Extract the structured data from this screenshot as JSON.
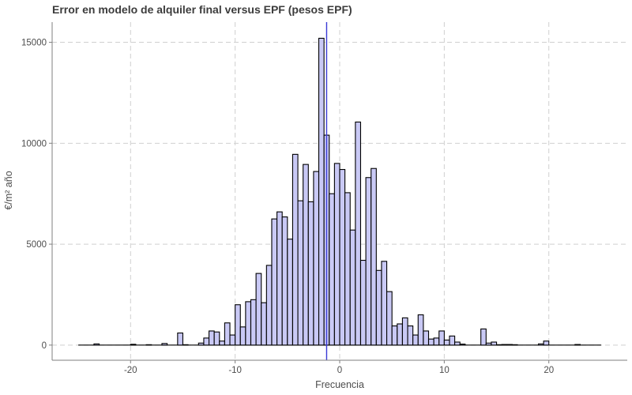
{
  "chart_data": {
    "type": "bar",
    "title": "Error en modelo de alquiler final versus EPF (pesos EPF)",
    "xlabel": "Frecuencia",
    "ylabel": "€/m² año",
    "xlim": [
      -27.5,
      27.5
    ],
    "ylim": [
      -750,
      16000
    ],
    "x_ticks": [
      -20,
      -10,
      0,
      10,
      20
    ],
    "y_ticks": [
      0,
      5000,
      10000,
      15000
    ],
    "grid": true,
    "bin_width": 0.5,
    "vline_x": -1.25,
    "colors": {
      "fill": "#c9c9f5",
      "stroke": "#000000",
      "vline": "#3a3ad6",
      "grid": "#d0d0d0",
      "axis": "#7f7f7f"
    },
    "x": [
      -24.75,
      -24.25,
      -23.75,
      -23.25,
      -22.75,
      -22.25,
      -21.75,
      -21.25,
      -20.75,
      -20.25,
      -19.75,
      -19.25,
      -18.75,
      -18.25,
      -17.75,
      -17.25,
      -16.75,
      -16.25,
      -15.75,
      -15.25,
      -14.75,
      -14.25,
      -13.75,
      -13.25,
      -12.75,
      -12.25,
      -11.75,
      -11.25,
      -10.75,
      -10.25,
      -9.75,
      -9.25,
      -8.75,
      -8.25,
      -7.75,
      -7.25,
      -6.75,
      -6.25,
      -5.75,
      -5.25,
      -4.75,
      -4.25,
      -3.75,
      -3.25,
      -2.75,
      -2.25,
      -1.75,
      -1.25,
      -0.75,
      -0.25,
      0.25,
      0.75,
      1.25,
      1.75,
      2.25,
      2.75,
      3.25,
      3.75,
      4.25,
      4.75,
      5.25,
      5.75,
      6.25,
      6.75,
      7.25,
      7.75,
      8.25,
      8.75,
      9.25,
      9.75,
      10.25,
      10.75,
      11.25,
      11.75,
      12.25,
      12.75,
      13.25,
      13.75,
      14.25,
      14.75,
      15.25,
      15.75,
      16.25,
      16.75,
      17.25,
      17.75,
      18.25,
      18.75,
      19.25,
      19.75,
      20.25,
      20.75,
      21.25,
      21.75,
      22.25,
      22.75,
      23.25,
      23.75,
      24.25,
      24.75
    ],
    "values": [
      0,
      0,
      0,
      60,
      0,
      0,
      0,
      0,
      0,
      0,
      40,
      0,
      0,
      20,
      0,
      0,
      80,
      0,
      0,
      600,
      20,
      0,
      0,
      100,
      350,
      700,
      650,
      200,
      1100,
      500,
      2000,
      900,
      2150,
      2250,
      3550,
      2100,
      3950,
      6250,
      6600,
      6350,
      5250,
      9450,
      7150,
      8950,
      7100,
      8600,
      15200,
      10400,
      7500,
      9000,
      8700,
      7550,
      5700,
      11050,
      4200,
      8300,
      8750,
      3700,
      4150,
      2650,
      950,
      1050,
      1350,
      950,
      500,
      1500,
      700,
      300,
      350,
      700,
      250,
      450,
      150,
      50,
      0,
      0,
      0,
      800,
      100,
      150,
      20,
      30,
      30,
      20,
      0,
      0,
      0,
      0,
      60,
      200,
      0,
      0,
      0,
      0,
      0,
      30,
      0,
      0,
      0,
      0
    ]
  }
}
